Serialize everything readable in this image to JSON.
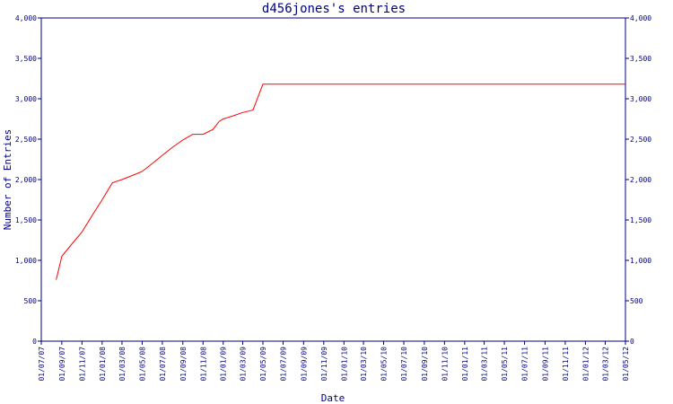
{
  "chart_data": {
    "type": "line",
    "title": "d456jones's entries",
    "xlabel": "Date",
    "ylabel": "Number of Entries",
    "ylim": [
      0,
      4000
    ],
    "y_ticks": [
      "0",
      "500",
      "1,000",
      "1,500",
      "2,000",
      "2,500",
      "3,000",
      "3,500",
      "4,000"
    ],
    "x_ticks": [
      "01/07/07",
      "01/09/07",
      "01/11/07",
      "01/01/08",
      "01/03/08",
      "01/05/08",
      "01/07/08",
      "01/09/08",
      "01/11/08",
      "01/01/09",
      "01/03/09",
      "01/05/09",
      "01/07/09",
      "01/09/09",
      "01/11/09",
      "01/01/10",
      "01/03/10",
      "01/05/10",
      "01/07/10",
      "01/09/10",
      "01/11/10",
      "01/01/11",
      "01/03/11",
      "01/05/11",
      "01/07/11",
      "01/09/11",
      "01/11/11",
      "01/01/12",
      "01/03/12",
      "01/05/12"
    ],
    "grid": false,
    "colors": {
      "axis": "#000080",
      "line": "#ff0000"
    },
    "series": [
      {
        "x": [
          "2007-08-15",
          "2007-09-01",
          "2007-10-01",
          "2007-11-01",
          "2007-12-01",
          "2008-01-01",
          "2008-02-01",
          "2008-03-01",
          "2008-04-01",
          "2008-05-01",
          "2008-06-01",
          "2008-07-01",
          "2008-08-01",
          "2008-09-01",
          "2008-10-01",
          "2008-11-01",
          "2008-12-01",
          "2008-12-20",
          "2009-01-01",
          "2009-02-01",
          "2009-03-01",
          "2009-04-01",
          "2009-05-01",
          "2009-06-01",
          "2012-06-15"
        ],
        "y": [
          760,
          1050,
          1200,
          1350,
          1550,
          1750,
          1960,
          2000,
          2050,
          2100,
          2200,
          2300,
          2400,
          2490,
          2560,
          2560,
          2620,
          2720,
          2750,
          2790,
          2830,
          2860,
          3180,
          3180,
          3180
        ]
      }
    ]
  }
}
